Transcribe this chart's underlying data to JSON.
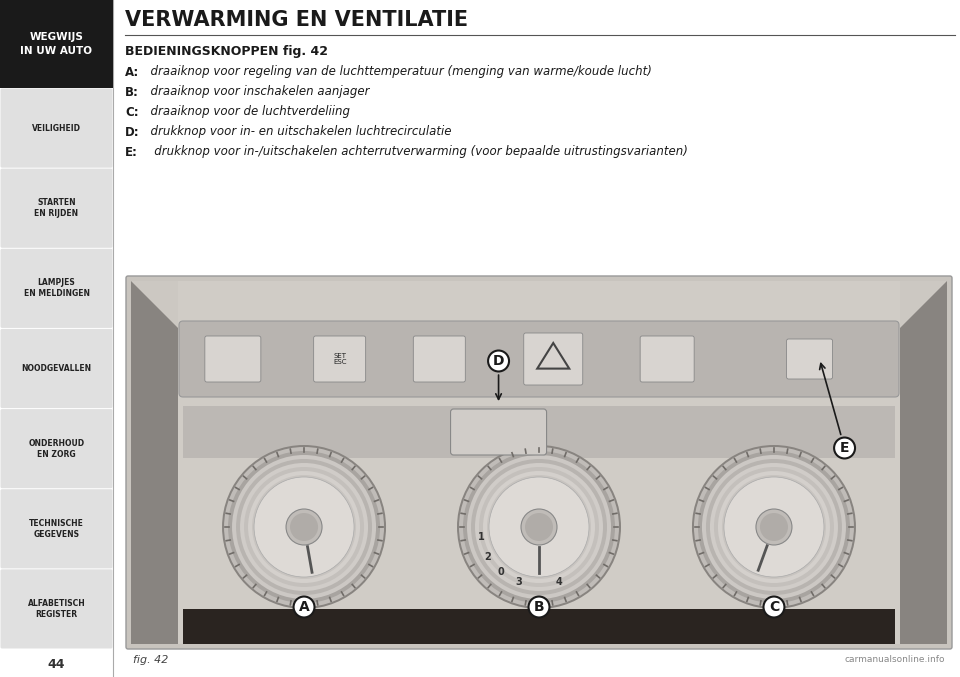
{
  "title": "VERWARMING EN VENTILATIE",
  "subtitle": "BEDIENINGSKNOPPEN fig. 42",
  "lines": [
    [
      "A:",
      "  draaiknop voor regeling van de luchttemperatuur (menging van warme/koude lucht)"
    ],
    [
      "B:",
      "  draaiknop voor inschakelen aanjager"
    ],
    [
      "C:",
      "  draaiknop voor de luchtverdeliing"
    ],
    [
      "D:",
      "  drukknop voor in- en uitschakelen luchtrecirculatie"
    ],
    [
      "E:",
      "   drukknop voor in-/uitschakelen achterrutverwarming (voor bepaalde uitrustingsvarianten)"
    ]
  ],
  "sidebar_top_label": "WEGWIJS\nIN UW AUTO",
  "sidebar_items": [
    "VEILIGHEID",
    "STARTEN\nEN RIJDEN",
    "LAMPJES\nEN MELDINGEN",
    "NOODGEVALLEN",
    "ONDERHOUD\nEN ZORG",
    "TECHNISCHE\nGEGEVENS",
    "ALFABETISCH\nREGISTER"
  ],
  "page_number": "44",
  "fig_label": "fig. 42",
  "bg_color": "#ffffff",
  "sidebar_bg": "#1a1a1a",
  "sidebar_item_bg": "#e0e0e0",
  "sidebar_divider": "#888888",
  "title_color": "#1a1a1a",
  "text_color": "#1a1a1a",
  "dash_bg": "#c8c4be",
  "dash_inner": "#d8d4ce",
  "btn_row_bg": "#b0acaa",
  "btn_face": "#d8d4d0",
  "knob_outer": "#c0bcb8",
  "knob_mid": "#d0ccc8",
  "knob_inner": "#e0dcd8",
  "knob_center": "#b8b4b0"
}
